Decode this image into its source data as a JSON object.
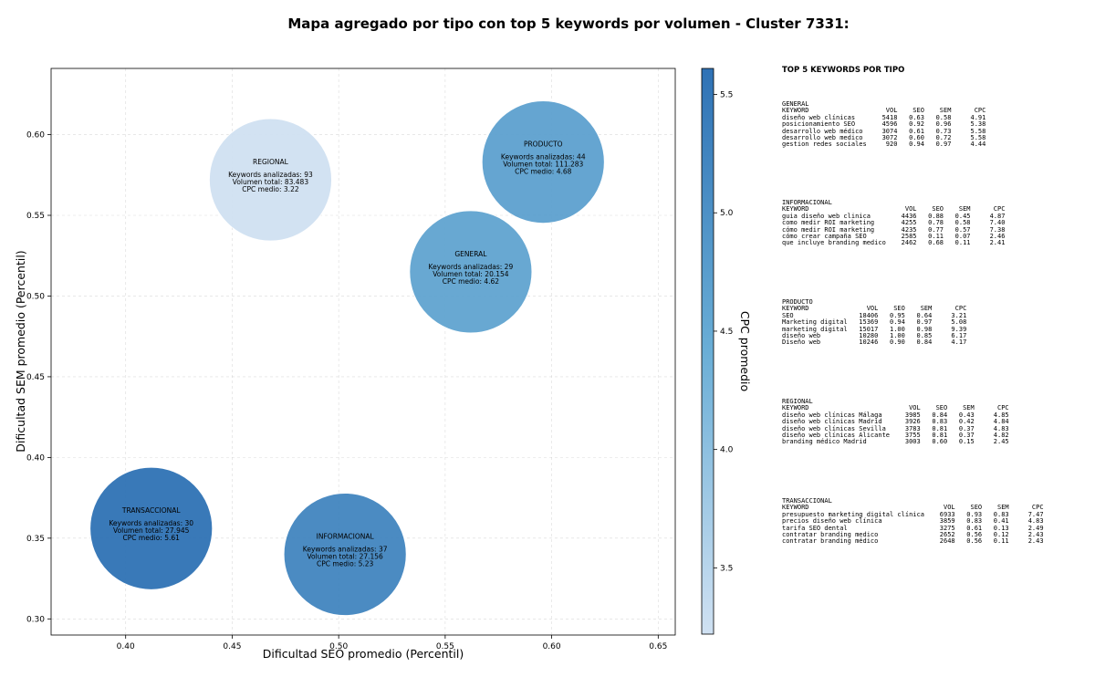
{
  "title": "Mapa agregado por tipo con top 5 keywords por volumen - Cluster 7331:",
  "chart_data": {
    "type": "scatter",
    "xlabel": "Dificultad SEO promedio (Percentil)",
    "ylabel": "Dificultad SEM promedio (Percentil)",
    "colorbar_label": "CPC promedio",
    "xlim": [
      0.365,
      0.658
    ],
    "ylim": [
      0.29,
      0.641
    ],
    "xticks": [
      0.4,
      0.45,
      0.5,
      0.55,
      0.6,
      0.65
    ],
    "yticks": [
      0.3,
      0.35,
      0.4,
      0.45,
      0.5,
      0.55,
      0.6
    ],
    "colorbar_range": [
      3.22,
      5.61
    ],
    "colorbar_ticks": [
      3.5,
      4.0,
      4.5,
      5.0,
      5.5
    ],
    "grid": true,
    "points": [
      {
        "name": "REGIONAL",
        "x": 0.468,
        "y": 0.572,
        "keywords_label": "Keywords analizadas: 93",
        "volume_label": "Volumen total: 83.483",
        "cpc_label": "CPC medio: 3.22",
        "cpc": 3.22,
        "count": 93
      },
      {
        "name": "PRODUCTO",
        "x": 0.596,
        "y": 0.583,
        "keywords_label": "Keywords analizadas: 44",
        "volume_label": "Volumen total: 111.283",
        "cpc_label": "CPC medio: 4.68",
        "cpc": 4.68,
        "count": 44
      },
      {
        "name": "GENERAL",
        "x": 0.562,
        "y": 0.515,
        "keywords_label": "Keywords analizadas: 29",
        "volume_label": "Volumen total: 20.154",
        "cpc_label": "CPC medio: 4.62",
        "cpc": 4.62,
        "count": 29
      },
      {
        "name": "TRANSACCIONAL",
        "x": 0.412,
        "y": 0.356,
        "keywords_label": "Keywords analizadas: 30",
        "volume_label": "Volumen total: 27.945",
        "cpc_label": "CPC medio: 5.61",
        "cpc": 5.61,
        "count": 30
      },
      {
        "name": "INFORMACIONAL",
        "x": 0.503,
        "y": 0.34,
        "keywords_label": "Keywords analizadas: 37",
        "volume_label": "Volumen total: 27.156",
        "cpc_label": "CPC medio: 5.23",
        "cpc": 5.23,
        "count": 37
      }
    ]
  },
  "top_keywords": {
    "title": "TOP 5 KEYWORDS POR TIPO",
    "headers": [
      "KEYWORD",
      "VOL",
      "SEO",
      "SEM",
      "CPC"
    ],
    "groups": [
      {
        "name": "GENERAL",
        "rows": [
          [
            "diseño web clínicas",
            "5418",
            "0.63",
            "0.58",
            "4.91"
          ],
          [
            "posicionamiento SEO",
            "4596",
            "0.92",
            "0.96",
            "5.38"
          ],
          [
            "desarrollo web médico",
            "3074",
            "0.61",
            "0.73",
            "5.58"
          ],
          [
            "desarrollo web medico",
            "3072",
            "0.60",
            "0.72",
            "5.58"
          ],
          [
            "gestion redes sociales",
            "920",
            "0.94",
            "0.97",
            "4.44"
          ]
        ]
      },
      {
        "name": "INFORMACIONAL",
        "rows": [
          [
            "guia diseño web clinica",
            "4436",
            "0.88",
            "0.45",
            "4.87"
          ],
          [
            "como medir ROI marketing",
            "4255",
            "0.78",
            "0.58",
            "7.40"
          ],
          [
            "cómo medir ROI marketing",
            "4235",
            "0.77",
            "0.57",
            "7.38"
          ],
          [
            "cómo crear campaña SEO",
            "2585",
            "0.11",
            "0.07",
            "2.46"
          ],
          [
            "que incluye branding medico",
            "2462",
            "0.68",
            "0.11",
            "2.41"
          ]
        ]
      },
      {
        "name": "PRODUCTO",
        "rows": [
          [
            "SEO",
            "18406",
            "0.95",
            "0.64",
            "3.21"
          ],
          [
            "Marketing digital",
            "15369",
            "0.94",
            "0.97",
            "5.08"
          ],
          [
            "marketing digital",
            "15017",
            "1.00",
            "0.98",
            "9.39"
          ],
          [
            "diseño web",
            "10280",
            "1.00",
            "0.85",
            "6.17"
          ],
          [
            "Diseño web",
            "10246",
            "0.90",
            "0.84",
            "4.17"
          ]
        ]
      },
      {
        "name": "REGIONAL",
        "rows": [
          [
            "diseño web clínicas Málaga",
            "3985",
            "0.84",
            "0.43",
            "4.85"
          ],
          [
            "diseño web clínicas Madrid",
            "3926",
            "0.83",
            "0.42",
            "4.84"
          ],
          [
            "diseño web clínicas Sevilla",
            "3783",
            "0.81",
            "0.37",
            "4.83"
          ],
          [
            "diseño web clínicas Alicante",
            "3755",
            "0.81",
            "0.37",
            "4.82"
          ],
          [
            "branding médico Madrid",
            "3003",
            "0.60",
            "0.15",
            "2.45"
          ]
        ]
      },
      {
        "name": "TRANSACCIONAL",
        "rows": [
          [
            "presupuesto marketing digital clínica",
            "6933",
            "0.93",
            "0.83",
            "7.47"
          ],
          [
            "precios diseño web clínica",
            "3859",
            "0.83",
            "0.41",
            "4.83"
          ],
          [
            "tarifa SEO dental",
            "3275",
            "0.61",
            "0.13",
            "2.49"
          ],
          [
            "contratar branding medico",
            "2652",
            "0.56",
            "0.12",
            "2.43"
          ],
          [
            "contratar branding médico",
            "2648",
            "0.56",
            "0.11",
            "2.43"
          ]
        ]
      }
    ]
  }
}
